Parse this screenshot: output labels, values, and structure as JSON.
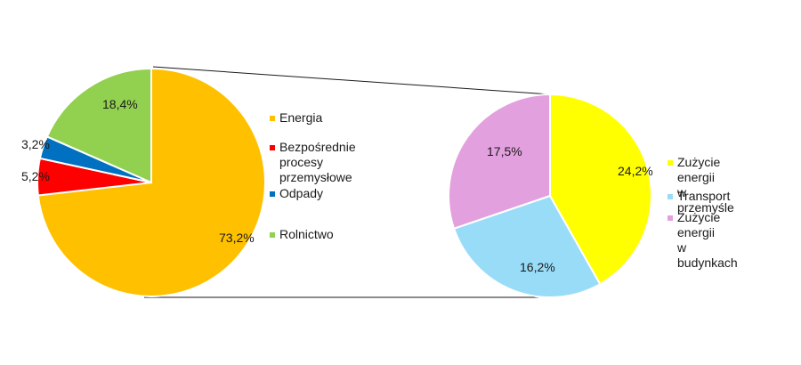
{
  "chart_data": [
    {
      "type": "pie",
      "start_angle_deg": 0,
      "direction": "clockwise",
      "slices": [
        {
          "label": "Energia",
          "value": 73.2,
          "display": "73,2%",
          "color": "#FFC000"
        },
        {
          "label": "Bezpośrednie procesy\nprzemysłowe",
          "value": 5.2,
          "display": "5,2%",
          "color": "#FF0000"
        },
        {
          "label": "Odpady",
          "value": 3.2,
          "display": "3,2%",
          "color": "#0070C0"
        },
        {
          "label": "Rolnictwo",
          "value": 18.4,
          "display": "18,4%",
          "color": "#92D050"
        }
      ],
      "legend_placement": "right"
    },
    {
      "type": "pie",
      "start_angle_deg": 0,
      "direction": "clockwise",
      "slices": [
        {
          "label": "Zużycie energii\nw przemyśle",
          "value": 24.2,
          "display": "24,2%",
          "color": "#FFFF00"
        },
        {
          "label": "Transport",
          "value": 16.2,
          "display": "16,2%",
          "color": "#99DCF8"
        },
        {
          "label": "Zużycie energii\nw budynkach",
          "value": 17.5,
          "display": "17,5%",
          "color": "#E3A0DE"
        }
      ],
      "legend_placement": "right"
    }
  ]
}
